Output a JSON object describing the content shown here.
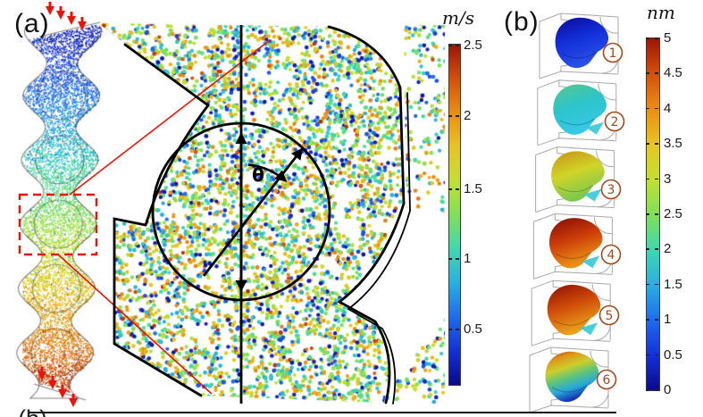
{
  "panel_a": {
    "label": "(a)",
    "inset": {
      "angle_label": "θ"
    },
    "colorbar": {
      "title": "m/s",
      "ticks": [
        "2.5",
        "2",
        "1.5",
        "1",
        "0.5"
      ]
    }
  },
  "panel_b": {
    "label": "(b)",
    "colorbar": {
      "title": "nm",
      "ticks": [
        "5",
        "4.5",
        "4",
        "3.5",
        "3",
        "2.5",
        "2",
        "1.5",
        "1",
        "0.5",
        "0"
      ]
    },
    "cells": [
      {
        "number": "1",
        "surface_colors": [
          "#0a0a9c",
          "#1230d8",
          "#2a50e8"
        ]
      },
      {
        "number": "2",
        "surface_colors": [
          "#58c88a",
          "#2cc4cc",
          "#38c8e8"
        ]
      },
      {
        "number": "3",
        "surface_colors": [
          "#c89018",
          "#d0d428",
          "#7cc850"
        ]
      },
      {
        "number": "4",
        "surface_colors": [
          "#820a06",
          "#cc3c08",
          "#ea9418"
        ]
      },
      {
        "number": "5",
        "surface_colors": [
          "#8e0e04",
          "#d04c08",
          "#eaa41c"
        ]
      },
      {
        "number": "6",
        "surface_colors": [
          "#c02408",
          "#dc9818",
          "#ccce2c",
          "#5cc47c",
          "#28a8da",
          "#1634b4"
        ]
      }
    ]
  },
  "cropped_bottom_label": "(b)",
  "colors": {
    "annotation_red": "#e81408",
    "outline_black": "#000000",
    "wireframe_gray": "#9a9a9a",
    "number_circle_brown": "#9c4a1e",
    "bottom_rule": "#141414",
    "colormap_jet": [
      "#0a0a8c",
      "#1430d8",
      "#1e6cf0",
      "#28b0e0",
      "#40d8b0",
      "#80e058",
      "#c4e030",
      "#e8c420",
      "#ea8e10",
      "#d4500a",
      "#9c1406"
    ]
  }
}
